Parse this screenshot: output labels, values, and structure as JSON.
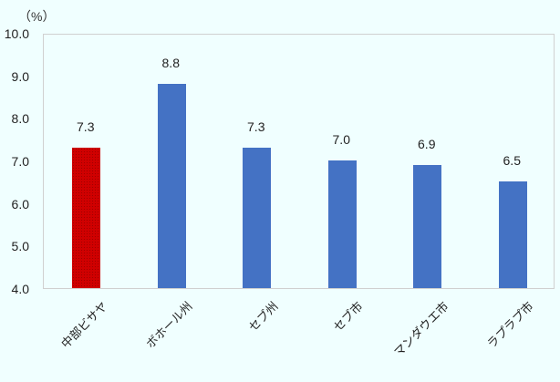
{
  "chart_data": {
    "type": "bar",
    "title": "",
    "ylabel": "（%）",
    "xlabel": "",
    "ylim": [
      4.0,
      10.0
    ],
    "yticks": [
      "4.0",
      "5.0",
      "6.0",
      "7.0",
      "8.0",
      "9.0",
      "10.0"
    ],
    "categories": [
      "中部ビサヤ",
      "ボホール州",
      "セブ州",
      "セブ市",
      "マンダウエ市",
      "ラプラプ市"
    ],
    "values": [
      7.3,
      8.8,
      7.3,
      7.0,
      6.9,
      6.5
    ],
    "value_labels": [
      "7.3",
      "8.8",
      "7.3",
      "7.0",
      "6.9",
      "6.5"
    ],
    "colors": [
      "#D00000",
      "#4472C4",
      "#4472C4",
      "#4472C4",
      "#4472C4",
      "#4472C4"
    ],
    "grid": false,
    "legend": null
  }
}
